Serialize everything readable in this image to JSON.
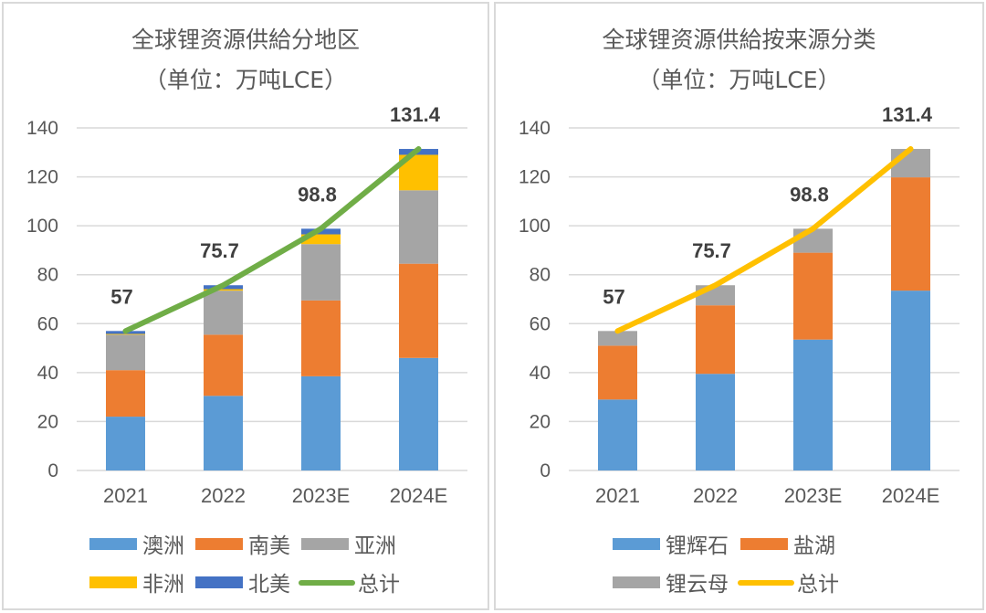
{
  "chart_data": [
    {
      "type": "bar",
      "stacked": true,
      "title": "全球锂资源供給分地区",
      "subtitle": "（单位：万吨LCE）",
      "xlabel": "",
      "ylabel": "",
      "ylim": [
        0,
        140
      ],
      "yticks": [
        0,
        20,
        40,
        60,
        80,
        100,
        120,
        140
      ],
      "grid": true,
      "categories": [
        "2021",
        "2022",
        "2023E",
        "2024E"
      ],
      "series": [
        {
          "name": "澳洲",
          "color": "#5B9BD5",
          "values": [
            22,
            30.5,
            38.5,
            46
          ]
        },
        {
          "name": "南美",
          "color": "#ED7D31",
          "values": [
            19,
            25,
            31,
            38.5
          ]
        },
        {
          "name": "亚洲",
          "color": "#A5A5A5",
          "values": [
            14.5,
            18,
            23,
            30
          ]
        },
        {
          "name": "非洲",
          "color": "#FFC000",
          "values": [
            0.3,
            0.6,
            4,
            14.5
          ]
        },
        {
          "name": "北美",
          "color": "#4472C4",
          "values": [
            1.2,
            1.6,
            2.3,
            2.4
          ]
        }
      ],
      "line": {
        "name": "总计",
        "color": "#70AD47",
        "values": [
          57,
          75.7,
          98.8,
          131.4
        ]
      },
      "data_labels": [
        "57",
        "75.7",
        "98.8",
        "131.4"
      ],
      "legend": "bottom"
    },
    {
      "type": "bar",
      "stacked": true,
      "title": "全球锂资源供給按来源分类",
      "subtitle": "（单位：万吨LCE）",
      "xlabel": "",
      "ylabel": "",
      "ylim": [
        0,
        140
      ],
      "yticks": [
        0,
        20,
        40,
        60,
        80,
        100,
        120,
        140
      ],
      "grid": true,
      "categories": [
        "2021",
        "2022",
        "2023E",
        "2024E"
      ],
      "series": [
        {
          "name": "锂辉石",
          "color": "#5B9BD5",
          "values": [
            29,
            39.5,
            53.5,
            73.5
          ]
        },
        {
          "name": "盐湖",
          "color": "#ED7D31",
          "values": [
            22,
            28,
            35.5,
            46.3
          ]
        },
        {
          "name": "锂云母",
          "color": "#A5A5A5",
          "values": [
            6,
            8.2,
            9.8,
            11.6
          ]
        }
      ],
      "line": {
        "name": "总计",
        "color": "#FFC000",
        "values": [
          57,
          75.7,
          98.8,
          131.4
        ]
      },
      "data_labels": [
        "57",
        "75.7",
        "98.8",
        "131.4"
      ],
      "legend": "bottom"
    }
  ]
}
